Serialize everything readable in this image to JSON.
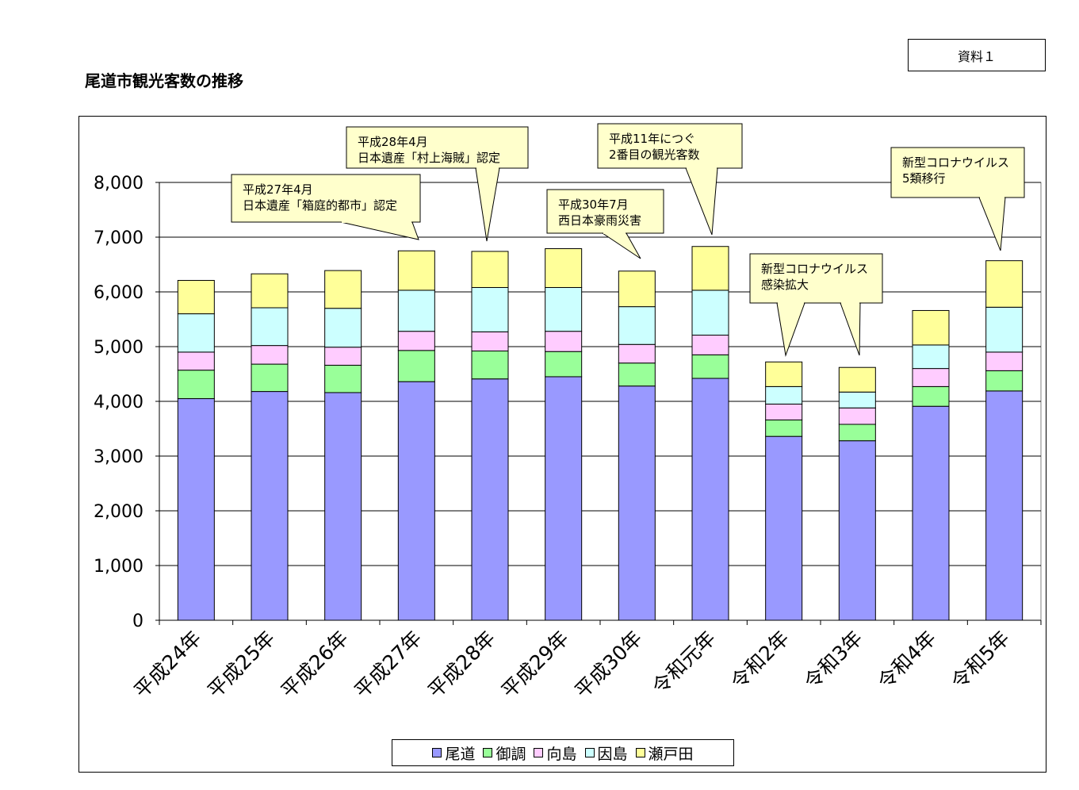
{
  "page": {
    "title": "尾道市観光客数の推移",
    "doc_ref": "資料１"
  },
  "chart_data": {
    "type": "bar",
    "stacked": true,
    "categories": [
      "平成24年",
      "平成25年",
      "平成26年",
      "平成27年",
      "平成28年",
      "平成29年",
      "平成30年",
      "令和元年",
      "令和2年",
      "令和3年",
      "令和4年",
      "令和5年"
    ],
    "series": [
      {
        "name": "尾道",
        "color": "#9999ff",
        "values": [
          4050,
          4180,
          4160,
          4360,
          4410,
          4450,
          4280,
          4420,
          3360,
          3280,
          3910,
          4190
        ]
      },
      {
        "name": "御調",
        "color": "#99ff99",
        "values": [
          520,
          500,
          500,
          570,
          510,
          460,
          420,
          430,
          300,
          300,
          360,
          370
        ]
      },
      {
        "name": "向島",
        "color": "#ffccff",
        "values": [
          330,
          340,
          330,
          350,
          350,
          370,
          340,
          360,
          290,
          300,
          330,
          340
        ]
      },
      {
        "name": "因島",
        "color": "#ccffff",
        "values": [
          700,
          690,
          710,
          750,
          810,
          800,
          690,
          820,
          320,
          290,
          430,
          820
        ]
      },
      {
        "name": "瀬戸田",
        "color": "#ffff99",
        "values": [
          610,
          620,
          690,
          720,
          660,
          710,
          650,
          800,
          450,
          450,
          630,
          850
        ]
      }
    ],
    "ylim": [
      0,
      8000
    ],
    "yticks": [
      "0",
      "1,000",
      "2,000",
      "3,000",
      "4,000",
      "5,000",
      "6,000",
      "7,000",
      "8,000"
    ],
    "grid": true,
    "legend": "bottom",
    "annotations": [
      {
        "lines": [
          "平成27年4月",
          "日本遺産「箱庭的都市」認定"
        ],
        "target": "平成27年"
      },
      {
        "lines": [
          "平成28年4月",
          "日本遺産「村上海賊」認定"
        ],
        "target": "平成28年"
      },
      {
        "lines": [
          "平成30年7月",
          "西日本豪雨災害"
        ],
        "target": "平成30年"
      },
      {
        "lines": [
          "平成11年につぐ",
          "2番目の観光客数"
        ],
        "target": "令和元年"
      },
      {
        "lines": [
          "新型コロナウイルス",
          "感染拡大"
        ],
        "target": "令和2年,令和3年"
      },
      {
        "lines": [
          "新型コロナウイルス",
          "5類移行"
        ],
        "target": "令和5年"
      }
    ]
  }
}
